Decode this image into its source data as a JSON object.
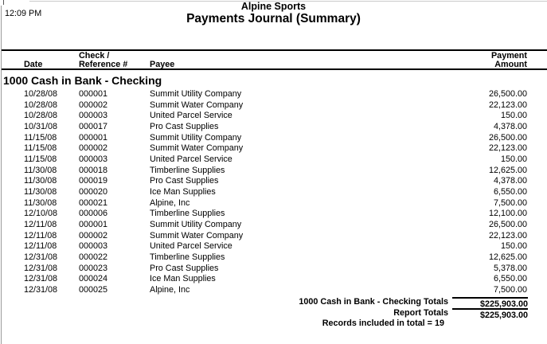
{
  "report": {
    "time": "12:09 PM",
    "company": "Alpine Sports",
    "title": "Payments Journal (Summary)",
    "columns": {
      "check_top": "Check /",
      "payment_top": "Payment",
      "date": "Date",
      "reference": "Reference #",
      "payee": "Payee",
      "amount": "Amount"
    },
    "section": {
      "header": "1000 Cash in Bank - Checking",
      "rows": [
        {
          "date": "10/28/08",
          "ref": "000001",
          "payee": "Summit Utility Company",
          "amount": "26,500.00"
        },
        {
          "date": "10/28/08",
          "ref": "000002",
          "payee": "Summit Water Company",
          "amount": "22,123.00"
        },
        {
          "date": "10/28/08",
          "ref": "000003",
          "payee": "United Parcel Service",
          "amount": "150.00"
        },
        {
          "date": "10/31/08",
          "ref": "000017",
          "payee": "Pro Cast Supplies",
          "amount": "4,378.00"
        },
        {
          "date": "11/15/08",
          "ref": "000001",
          "payee": "Summit Utility Company",
          "amount": "26,500.00"
        },
        {
          "date": "11/15/08",
          "ref": "000002",
          "payee": "Summit Water Company",
          "amount": "22,123.00"
        },
        {
          "date": "11/15/08",
          "ref": "000003",
          "payee": "United Parcel Service",
          "amount": "150.00"
        },
        {
          "date": "11/30/08",
          "ref": "000018",
          "payee": "Timberline Supplies",
          "amount": "12,625.00"
        },
        {
          "date": "11/30/08",
          "ref": "000019",
          "payee": "Pro Cast Supplies",
          "amount": "4,378.00"
        },
        {
          "date": "11/30/08",
          "ref": "000020",
          "payee": "Ice Man Supplies",
          "amount": "6,550.00"
        },
        {
          "date": "11/30/08",
          "ref": "000021",
          "payee": "Alpine, Inc",
          "amount": "7,500.00"
        },
        {
          "date": "12/10/08",
          "ref": "000006",
          "payee": "Timberline Supplies",
          "amount": "12,100.00"
        },
        {
          "date": "12/11/08",
          "ref": "000001",
          "payee": "Summit Utility Company",
          "amount": "26,500.00"
        },
        {
          "date": "12/11/08",
          "ref": "000002",
          "payee": "Summit Water Company",
          "amount": "22,123.00"
        },
        {
          "date": "12/11/08",
          "ref": "000003",
          "payee": "United Parcel Service",
          "amount": "150.00"
        },
        {
          "date": "12/31/08",
          "ref": "000022",
          "payee": "Timberline Supplies",
          "amount": "12,625.00"
        },
        {
          "date": "12/31/08",
          "ref": "000023",
          "payee": "Pro Cast Supplies",
          "amount": "5,378.00"
        },
        {
          "date": "12/31/08",
          "ref": "000024",
          "payee": "Ice Man Supplies",
          "amount": "6,550.00"
        },
        {
          "date": "12/31/08",
          "ref": "000025",
          "payee": "Alpine, Inc",
          "amount": "7,500.00"
        }
      ],
      "totals_label": "1000 Cash in Bank - Checking Totals",
      "totals_amount": "$225,903.00"
    },
    "report_totals": {
      "label": "Report Totals",
      "amount": "$225,903.00"
    },
    "records_note": "Records included in total = 19",
    "colors": {
      "text": "#000000",
      "rule": "#000000",
      "page_edge": "#9a9a9a",
      "background": "#ffffff"
    }
  }
}
